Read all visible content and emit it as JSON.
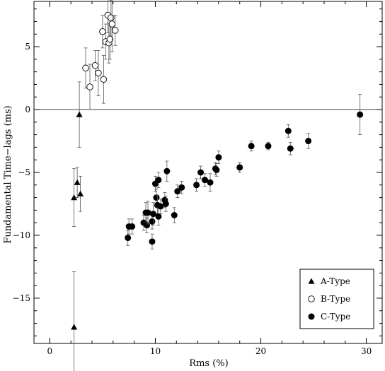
{
  "chart_data": {
    "type": "scatter",
    "title": "",
    "xlabel": "Rms (%)",
    "ylabel": "Fundamental Time−lags (ms)",
    "xlim": [
      -1.5,
      31.5
    ],
    "ylim": [
      -18.6,
      8.6
    ],
    "x_ticks": [
      0,
      10,
      20,
      30
    ],
    "y_ticks": [
      -15,
      -10,
      -5,
      0,
      5
    ],
    "x_tick_labels": [
      "0",
      "10",
      "20",
      "30"
    ],
    "y_tick_labels": [
      "−15",
      "−10",
      "−5",
      "0",
      "5"
    ],
    "zero_line": true,
    "grid": false,
    "legend_position": "bottom-right",
    "series": [
      {
        "name": "A-Type",
        "marker": "filled-triangle",
        "points": [
          {
            "x": 2.3,
            "y": -17.3,
            "err": 4.4
          },
          {
            "x": 2.3,
            "y": -7.0,
            "err": 2.3
          },
          {
            "x": 2.6,
            "y": -5.8,
            "err": 1.2
          },
          {
            "x": 2.9,
            "y": -6.7,
            "err": 1.4
          },
          {
            "x": 2.8,
            "y": -0.4,
            "err": 2.6
          }
        ]
      },
      {
        "name": "B-Type",
        "marker": "open-circle",
        "points": [
          {
            "x": 3.4,
            "y": 3.3,
            "err": 1.6
          },
          {
            "x": 3.8,
            "y": 1.8,
            "err": 1.8
          },
          {
            "x": 4.3,
            "y": 3.5,
            "err": 1.2
          },
          {
            "x": 4.6,
            "y": 2.9,
            "err": 1.8
          },
          {
            "x": 5.0,
            "y": 6.2,
            "err": 1.3
          },
          {
            "x": 5.1,
            "y": 2.4,
            "err": 1.9
          },
          {
            "x": 5.3,
            "y": 5.4,
            "err": 1.4
          },
          {
            "x": 5.5,
            "y": 7.5,
            "err": 1.4
          },
          {
            "x": 5.6,
            "y": 5.3,
            "err": 1.6
          },
          {
            "x": 5.7,
            "y": 5.6,
            "err": 1.6
          },
          {
            "x": 5.8,
            "y": 7.3,
            "err": 1.4
          },
          {
            "x": 5.9,
            "y": 6.8,
            "err": 2.2
          },
          {
            "x": 6.2,
            "y": 6.3,
            "err": 1.2
          }
        ]
      },
      {
        "name": "C-Type",
        "marker": "filled-circle",
        "points": [
          {
            "x": 7.4,
            "y": -10.2,
            "err": 0.6
          },
          {
            "x": 7.5,
            "y": -9.3,
            "err": 0.6
          },
          {
            "x": 7.8,
            "y": -9.3,
            "err": 0.6
          },
          {
            "x": 8.9,
            "y": -9.0,
            "err": 0.6
          },
          {
            "x": 9.1,
            "y": -8.2,
            "err": 0.8
          },
          {
            "x": 9.2,
            "y": -9.2,
            "err": 0.6
          },
          {
            "x": 9.3,
            "y": -8.2,
            "err": 0.9
          },
          {
            "x": 9.7,
            "y": -8.9,
            "err": 0.6
          },
          {
            "x": 9.7,
            "y": -10.5,
            "err": 0.6
          },
          {
            "x": 9.8,
            "y": -8.3,
            "err": 0.9
          },
          {
            "x": 10.0,
            "y": -5.9,
            "err": 0.6
          },
          {
            "x": 10.1,
            "y": -7.0,
            "err": 0.7
          },
          {
            "x": 10.2,
            "y": -7.6,
            "err": 0.8
          },
          {
            "x": 10.3,
            "y": -5.6,
            "err": 0.6
          },
          {
            "x": 10.3,
            "y": -8.5,
            "err": 0.7
          },
          {
            "x": 10.5,
            "y": -7.7,
            "err": 0.6
          },
          {
            "x": 10.9,
            "y": -7.2,
            "err": 0.6
          },
          {
            "x": 11.0,
            "y": -7.5,
            "err": 0.6
          },
          {
            "x": 11.1,
            "y": -4.9,
            "err": 0.8
          },
          {
            "x": 11.8,
            "y": -8.4,
            "err": 0.6
          },
          {
            "x": 12.1,
            "y": -6.5,
            "err": 0.5
          },
          {
            "x": 12.5,
            "y": -6.2,
            "err": 0.5
          },
          {
            "x": 13.9,
            "y": -6.0,
            "err": 0.5
          },
          {
            "x": 14.3,
            "y": -5.0,
            "err": 0.5
          },
          {
            "x": 14.7,
            "y": -5.6,
            "err": 0.5
          },
          {
            "x": 15.2,
            "y": -5.8,
            "err": 0.7
          },
          {
            "x": 15.7,
            "y": -4.7,
            "err": 0.5
          },
          {
            "x": 15.8,
            "y": -4.8,
            "err": 0.5
          },
          {
            "x": 16.0,
            "y": -3.8,
            "err": 0.5
          },
          {
            "x": 18.0,
            "y": -4.6,
            "err": 0.4
          },
          {
            "x": 19.1,
            "y": -2.9,
            "err": 0.4
          },
          {
            "x": 20.7,
            "y": -2.9,
            "err": 0.3
          },
          {
            "x": 22.6,
            "y": -1.7,
            "err": 0.5
          },
          {
            "x": 22.8,
            "y": -3.1,
            "err": 0.5
          },
          {
            "x": 24.5,
            "y": -2.5,
            "err": 0.6
          },
          {
            "x": 29.4,
            "y": -0.4,
            "err": 1.6
          }
        ]
      }
    ]
  }
}
